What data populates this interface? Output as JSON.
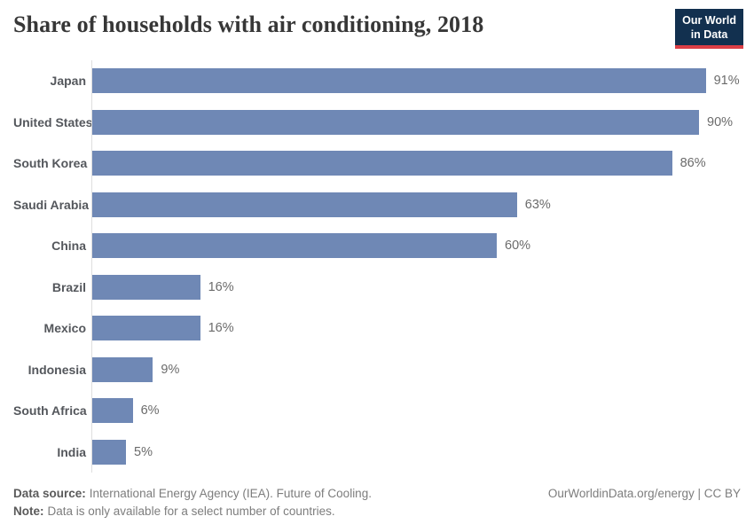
{
  "header": {
    "title": "Share of households with air conditioning, 2018",
    "logo": {
      "line1": "Our World",
      "line2": "in Data",
      "bg_color": "#12304f",
      "accent_color": "#dc3e45"
    }
  },
  "chart_data": {
    "type": "bar",
    "orientation": "horizontal",
    "title": "Share of households with air conditioning, 2018",
    "categories": [
      "Japan",
      "United States",
      "South Korea",
      "Saudi Arabia",
      "China",
      "Brazil",
      "Mexico",
      "Indonesia",
      "South Africa",
      "India"
    ],
    "values": [
      91,
      90,
      86,
      63,
      60,
      16,
      16,
      9,
      6,
      5
    ],
    "value_labels": [
      "91%",
      "90%",
      "86%",
      "63%",
      "60%",
      "16%",
      "16%",
      "9%",
      "6%",
      "5%"
    ],
    "unit": "%",
    "xlim": [
      0,
      100
    ],
    "bar_color": "#6f88b5",
    "axis_line_color": "#dedede",
    "grid": false,
    "legend": "none"
  },
  "footer": {
    "source_label": "Data source:",
    "source_text": "International Energy Agency (IEA). Future of Cooling.",
    "note_label": "Note:",
    "note_text": "Data is only available for a select number of countries.",
    "link_text": "OurWorldinData.org/energy | CC BY"
  }
}
